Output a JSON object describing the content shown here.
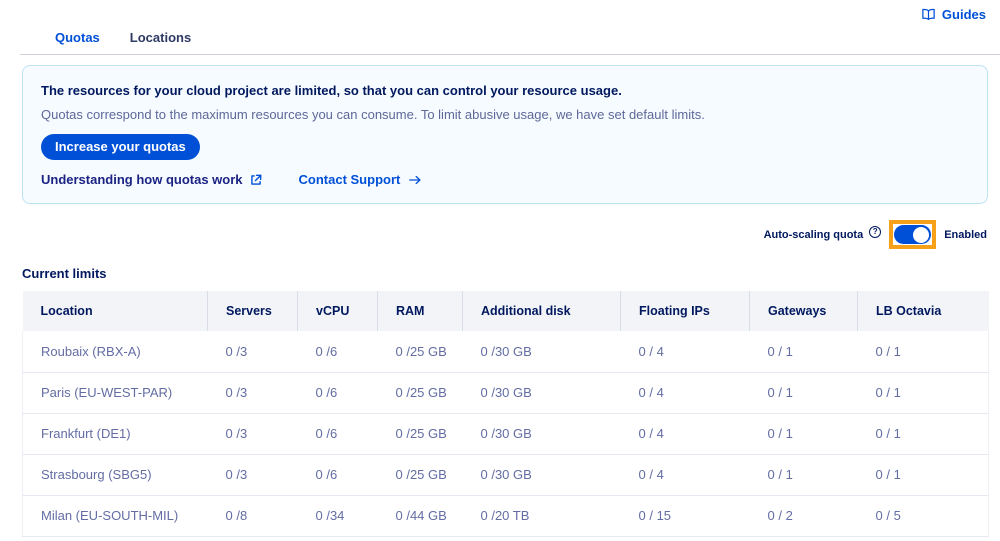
{
  "header": {
    "guides_label": "Guides"
  },
  "tabs": [
    {
      "label": "Quotas",
      "active": true
    },
    {
      "label": "Locations",
      "active": false
    }
  ],
  "info_banner": {
    "title": "The resources for your cloud project are limited, so that you can control your resource usage.",
    "description": "Quotas correspond to the maximum resources you can consume. To limit abusive usage, we have set default limits.",
    "primary_button": "Increase your quotas",
    "link_quotas": "Understanding how quotas work",
    "link_support": "Contact Support"
  },
  "autoscaling": {
    "label": "Auto-scaling quota",
    "state_label": "Enabled",
    "enabled": true
  },
  "table": {
    "title": "Current limits",
    "columns": [
      "Location",
      "Servers",
      "vCPU",
      "RAM",
      "Additional disk",
      "Floating IPs",
      "Gateways",
      "LB Octavia"
    ],
    "rows": [
      [
        "Roubaix (RBX-A)",
        "0 /3",
        "0 /6",
        "0 /25 GB",
        "0 /30 GB",
        "0 / 4",
        "0 / 1",
        "0 / 1"
      ],
      [
        "Paris (EU-WEST-PAR)",
        "0 /3",
        "0 /6",
        "0 /25 GB",
        "0 /30 GB",
        "0 / 4",
        "0 / 1",
        "0 / 1"
      ],
      [
        "Frankfurt (DE1)",
        "0 /3",
        "0 /6",
        "0 /25 GB",
        "0 /30 GB",
        "0 / 4",
        "0 / 1",
        "0 / 1"
      ],
      [
        "Strasbourg (SBG5)",
        "0 /3",
        "0 /6",
        "0 /25 GB",
        "0 /30 GB",
        "0 / 4",
        "0 / 1",
        "0 / 1"
      ],
      [
        "Milan (EU-SOUTH-MIL)",
        "0 /8",
        "0 /34",
        "0 /44 GB",
        "0 /20 TB",
        "0 / 15",
        "0 / 2",
        "0 / 5"
      ]
    ]
  },
  "colors": {
    "accent_blue": "#0050d7",
    "navy_text": "#00185e",
    "muted_row_text": "#636da3",
    "banner_bg": "#f6fbff",
    "banner_border": "#bee3f5",
    "table_header_bg": "#f3f4f8",
    "highlight_orange": "#f7a11a"
  }
}
